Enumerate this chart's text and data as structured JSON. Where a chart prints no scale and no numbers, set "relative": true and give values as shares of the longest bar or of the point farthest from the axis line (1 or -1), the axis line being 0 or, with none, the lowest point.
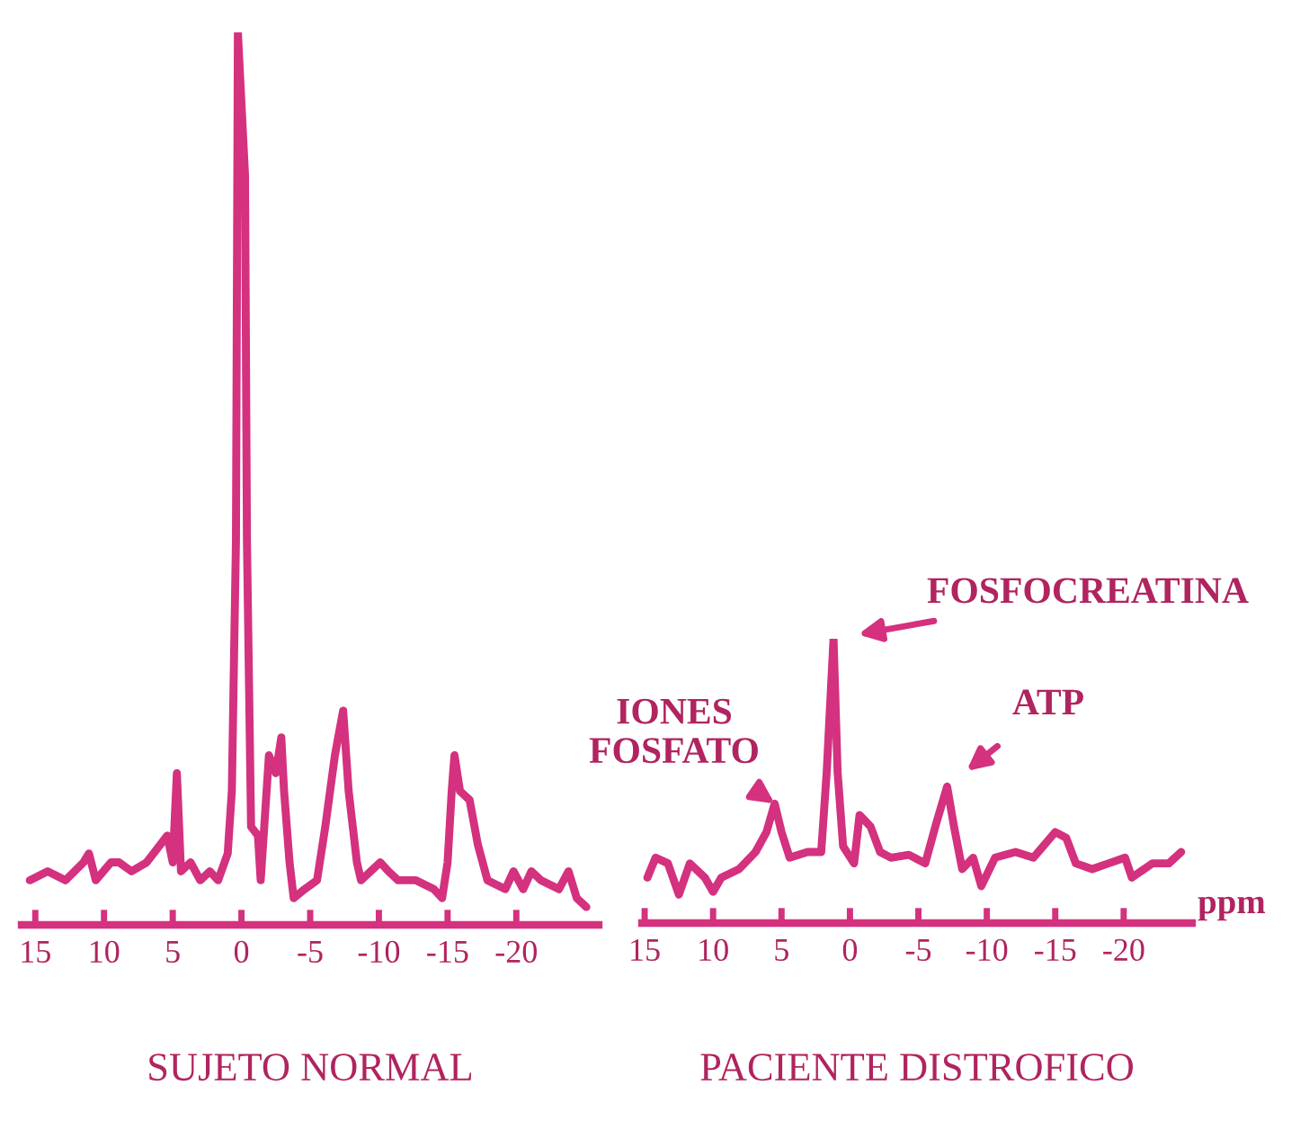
{
  "chart_data": [
    {
      "type": "line",
      "title": "SUJETO NORMAL",
      "relative": true,
      "tick_labels": "x",
      "grid": false,
      "legend": false,
      "marker": "none",
      "line_style": "solid",
      "xlim": [
        16,
        -26
      ],
      "xticks": [
        15,
        10,
        5,
        0,
        -5,
        -10,
        -15,
        -20
      ],
      "series": [
        {
          "color": "#d4317f",
          "x": [
            15.4,
            14.1,
            12.8,
            11.5,
            11.1,
            10.6,
            9.5,
            8.9,
            8.0,
            6.9,
            5.9,
            5.4,
            5.0,
            4.7,
            4.4,
            3.7,
            3.0,
            2.3,
            1.7,
            1.0,
            0.7,
            0.4,
            0.26,
            -0.26,
            -0.4,
            -0.7,
            -1.2,
            -1.4,
            -1.7,
            -2.0,
            -2.5,
            -2.9,
            -3.1,
            -3.5,
            -3.8,
            -4.6,
            -5.5,
            -6.1,
            -6.8,
            -7.4,
            -7.8,
            -8.4,
            -8.7,
            -9.4,
            -10.1,
            -10.7,
            -11.4,
            -12.7,
            -14.0,
            -14.6,
            -15.0,
            -15.3,
            -15.5,
            -15.9,
            -16.6,
            -17.2,
            -17.9,
            -19.2,
            -19.8,
            -20.5,
            -21.1,
            -21.8,
            -23.1,
            -23.8,
            -24.4,
            -25.1
          ],
          "values": [
            0.05,
            0.06,
            0.05,
            0.07,
            0.08,
            0.05,
            0.07,
            0.07,
            0.06,
            0.07,
            0.09,
            0.1,
            0.07,
            0.17,
            0.06,
            0.07,
            0.05,
            0.06,
            0.05,
            0.08,
            0.15,
            0.43,
            1.0,
            0.84,
            0.43,
            0.11,
            0.1,
            0.05,
            0.12,
            0.19,
            0.17,
            0.21,
            0.15,
            0.07,
            0.03,
            0.04,
            0.05,
            0.11,
            0.19,
            0.24,
            0.15,
            0.07,
            0.05,
            0.06,
            0.07,
            0.06,
            0.05,
            0.05,
            0.04,
            0.03,
            0.07,
            0.15,
            0.19,
            0.15,
            0.14,
            0.09,
            0.05,
            0.04,
            0.06,
            0.04,
            0.06,
            0.05,
            0.04,
            0.06,
            0.03,
            0.02
          ]
        }
      ]
    },
    {
      "type": "line",
      "title": "PACIENTE DISTROFICO",
      "xlabel": "ppm",
      "relative": true,
      "tick_labels": "x",
      "grid": false,
      "legend": false,
      "marker": "none",
      "line_style": "solid",
      "xlim": [
        15.2,
        -25
      ],
      "xticks": [
        15,
        10,
        5,
        0,
        -5,
        -10,
        -15,
        -20
      ],
      "annotations": [
        {
          "text": "IONES\nFOSFATO",
          "x": 5.5,
          "y": 0.42
        },
        {
          "text": "FOSFOCREATINA",
          "x": 1.2,
          "y": 1.0
        },
        {
          "text": "ATP",
          "x": -7.1,
          "y": 0.48
        }
      ],
      "series": [
        {
          "color": "#d4317f",
          "x": [
            14.8,
            14.2,
            13.3,
            12.5,
            11.7,
            10.6,
            10.0,
            9.4,
            8.1,
            6.9,
            6.1,
            5.5,
            5.0,
            4.4,
            3.1,
            2.1,
            1.7,
            1.2,
            0.9,
            0.5,
            -0.3,
            -0.7,
            -1.5,
            -2.2,
            -3.0,
            -4.3,
            -5.5,
            -6.3,
            -7.1,
            -7.6,
            -8.2,
            -9.0,
            -9.6,
            -10.6,
            -12.1,
            -13.4,
            -15.0,
            -15.8,
            -16.5,
            -17.7,
            -18.9,
            -20.1,
            -20.6,
            -22.1,
            -23.3,
            -24.2
          ],
          "values": [
            0.16,
            0.23,
            0.21,
            0.1,
            0.21,
            0.16,
            0.11,
            0.16,
            0.19,
            0.25,
            0.32,
            0.42,
            0.32,
            0.23,
            0.25,
            0.25,
            0.53,
            1.0,
            0.53,
            0.27,
            0.21,
            0.38,
            0.34,
            0.25,
            0.23,
            0.24,
            0.21,
            0.35,
            0.48,
            0.34,
            0.19,
            0.23,
            0.13,
            0.23,
            0.25,
            0.23,
            0.32,
            0.3,
            0.21,
            0.19,
            0.21,
            0.23,
            0.16,
            0.21,
            0.21,
            0.25
          ]
        }
      ]
    }
  ]
}
